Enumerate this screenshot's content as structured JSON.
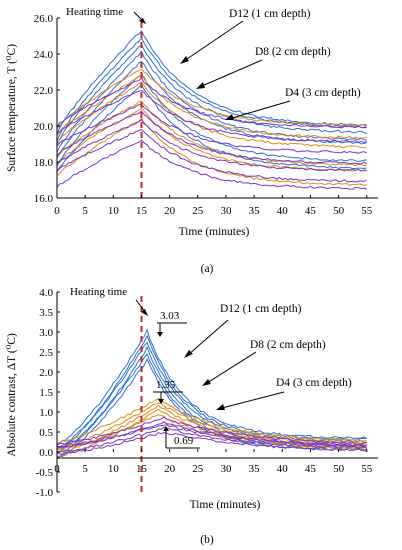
{
  "chart_data": [
    {
      "id": "a",
      "type": "line",
      "panel_label": "(a)",
      "xlabel": "Time  (minutes)",
      "ylabel": "Surface temperature, T (⁰C)",
      "xlim": [
        0,
        57
      ],
      "ylim": [
        16.0,
        26.0
      ],
      "x_ticks": [
        0,
        5,
        10,
        15,
        20,
        25,
        30,
        35,
        40,
        45,
        50,
        55
      ],
      "y_ticks": [
        16.0,
        18.0,
        20.0,
        22.0,
        24.0,
        26.0
      ],
      "heating_end_min": 15,
      "annotations": [
        {
          "text": "Heating  time"
        },
        {
          "text": "D12 (1 cm depth)"
        },
        {
          "text": "D8 (2 cm depth)"
        },
        {
          "text": "D4 (3 cm depth)"
        }
      ],
      "series": [
        {
          "name": "D12",
          "color": "#2f6fd0",
          "curves": [
            [
              19.6,
              25.3,
              20.0
            ],
            [
              19.2,
              24.9,
              19.9
            ],
            [
              19.0,
              24.5,
              19.6
            ],
            [
              18.5,
              24.1,
              19.2
            ],
            [
              18.2,
              23.6,
              19.0
            ],
            [
              17.8,
              22.9,
              18.0
            ],
            [
              17.4,
              22.3,
              17.6
            ]
          ]
        },
        {
          "name": "D8",
          "color": "#e08a16",
          "curves": [
            [
              19.9,
              23.2,
              20.0
            ],
            [
              19.5,
              22.8,
              19.3
            ],
            [
              19.1,
              22.4,
              18.8
            ],
            [
              18.3,
              21.4,
              17.8
            ],
            [
              17.9,
              21.0,
              17.5
            ],
            [
              17.2,
              20.4,
              16.7
            ]
          ]
        },
        {
          "name": "D4",
          "color": "#7a35c6",
          "curves": [
            [
              20.0,
              22.6,
              19.9
            ],
            [
              19.6,
              22.0,
              19.1
            ],
            [
              18.9,
              21.2,
              18.5
            ],
            [
              18.4,
              20.8,
              17.9
            ],
            [
              17.9,
              20.3,
              17.5
            ],
            [
              17.5,
              19.8,
              16.9
            ],
            [
              16.6,
              19.2,
              16.5
            ]
          ]
        }
      ]
    },
    {
      "id": "b",
      "type": "line",
      "panel_label": "(b)",
      "xlabel": "Time  (minutes)",
      "ylabel": "Absolute contrast, ΔT (⁰C)",
      "xlim": [
        0,
        57
      ],
      "ylim": [
        -1.0,
        4.0
      ],
      "x_ticks": [
        0,
        5,
        10,
        15,
        20,
        25,
        30,
        35,
        40,
        45,
        50,
        55
      ],
      "y_ticks": [
        -1.0,
        -0.5,
        0.0,
        0.5,
        1.0,
        1.5,
        2.0,
        2.5,
        3.0,
        3.5,
        4.0
      ],
      "heating_end_min": 15,
      "annotations": [
        {
          "text": "Heating  time"
        },
        {
          "text": "D12 (1 cm depth)"
        },
        {
          "text": "D8 (2 cm depth)"
        },
        {
          "text": "D4 (3 cm depth)"
        },
        {
          "text": "3.03",
          "value": 3.03
        },
        {
          "text": "1.35",
          "value": 1.35
        },
        {
          "text": "0.69",
          "value": 0.69
        }
      ],
      "series": [
        {
          "name": "D12",
          "color": "#2f6fd0",
          "peak_x": 16,
          "curves": [
            [
              0.2,
              3.03,
              0.35
            ],
            [
              0.05,
              2.9,
              0.3
            ],
            [
              0.1,
              2.75,
              0.25
            ],
            [
              -0.1,
              2.6,
              0.15
            ],
            [
              0.0,
              2.45,
              0.1
            ],
            [
              -0.15,
              2.3,
              0.05
            ]
          ]
        },
        {
          "name": "D8",
          "color": "#e08a16",
          "peak_x": 18,
          "curves": [
            [
              0.25,
              1.35,
              0.25
            ],
            [
              0.1,
              1.25,
              0.2
            ],
            [
              0.0,
              1.15,
              0.15
            ],
            [
              -0.1,
              1.05,
              0.1
            ],
            [
              0.05,
              0.95,
              0.05
            ]
          ]
        },
        {
          "name": "D4",
          "color": "#7a35c6",
          "peak_x": 19,
          "curves": [
            [
              0.2,
              0.85,
              0.15
            ],
            [
              0.1,
              0.75,
              0.1
            ],
            [
              0.15,
              0.69,
              0.1
            ],
            [
              0.0,
              0.6,
              0.05
            ],
            [
              -0.05,
              0.5,
              0.0
            ]
          ]
        }
      ]
    }
  ]
}
